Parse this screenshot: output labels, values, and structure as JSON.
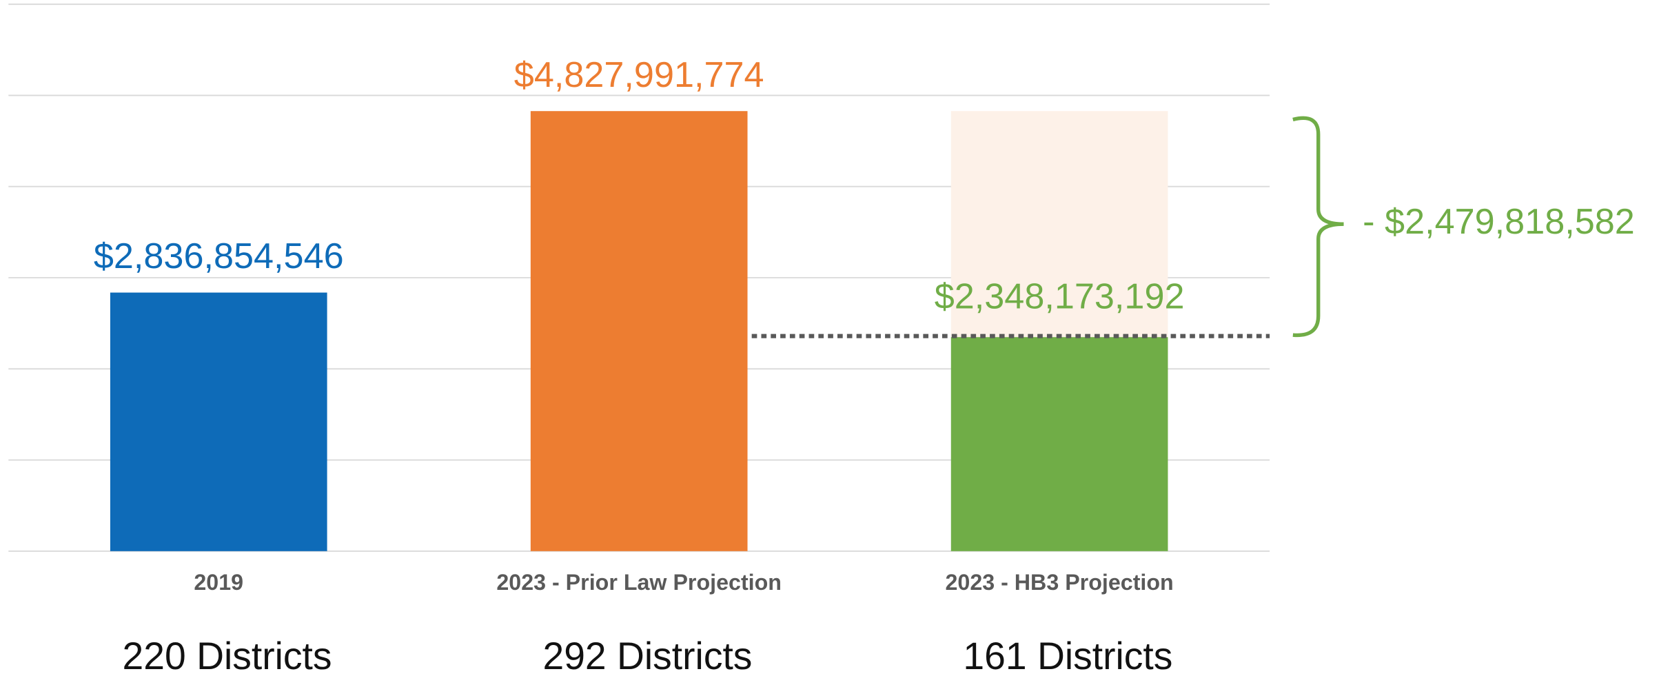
{
  "chart_data": {
    "type": "bar",
    "categories": [
      "2019",
      "2023 - Prior Law Projection",
      "2023 - HB3 Projection"
    ],
    "values": [
      2836854546,
      4827991774,
      2348173192
    ],
    "value_labels": [
      "$2,836,854,546",
      "$4,827,991,774",
      "$2,348,173,192"
    ],
    "colors": [
      "#0e6bb8",
      "#ed7d31",
      "#70ad47"
    ],
    "district_labels": [
      "220 Districts",
      "292 Districts",
      "161 Districts"
    ],
    "difference": {
      "value": 2479818582,
      "label": "- $2,479,818,582",
      "color": "#70ad47",
      "shade": "#fdf1e8"
    },
    "ylim": [
      0,
      6000000000
    ],
    "yticks": [
      0,
      1000000000,
      2000000000,
      3000000000,
      4000000000,
      5000000000,
      6000000000
    ],
    "grid": true
  }
}
